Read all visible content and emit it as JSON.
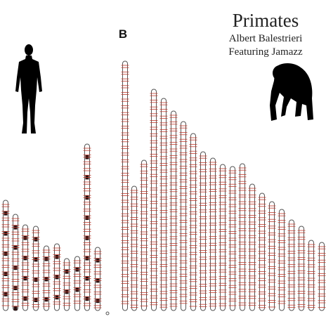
{
  "cover": {
    "title": "Primates",
    "artist": "Albert Balestrieri",
    "featuring": "Featuring Jamazz",
    "panel_label": "B"
  }
}
